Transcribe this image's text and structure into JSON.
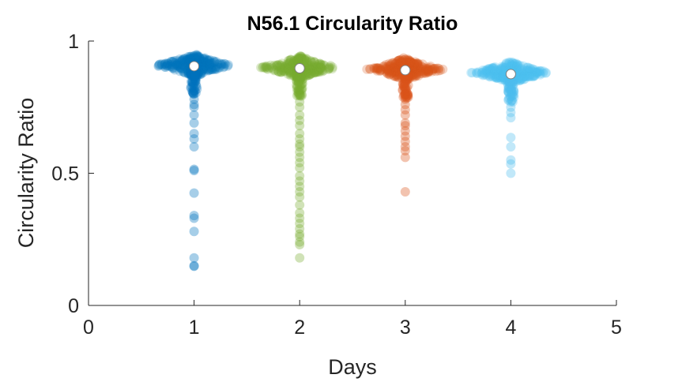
{
  "chart_data": {
    "type": "scatter",
    "title": "N56.1 Circularity Ratio",
    "xlabel": "Days",
    "ylabel": "Circularity Ratio",
    "xlim": [
      0,
      5
    ],
    "ylim": [
      0,
      1
    ],
    "xticks": [
      "0",
      "1",
      "2",
      "3",
      "4",
      "5"
    ],
    "yticks": [
      "0",
      "0.5",
      "1"
    ],
    "grid": false,
    "legend": "none",
    "series": [
      {
        "x": 1,
        "color": "#0072BD",
        "median": 0.905,
        "dense_center": 0.908,
        "outliers": [
          0.88,
          0.86,
          0.84,
          0.82,
          0.8,
          0.78,
          0.76,
          0.75,
          0.72,
          0.69,
          0.65,
          0.63,
          0.6,
          0.515,
          0.51,
          0.425,
          0.34,
          0.33,
          0.28,
          0.18,
          0.15,
          0.148
        ]
      },
      {
        "x": 2,
        "color": "#77AC30",
        "median": 0.897,
        "dense_center": 0.9,
        "outliers": [
          0.87,
          0.85,
          0.83,
          0.8,
          0.77,
          0.75,
          0.72,
          0.7,
          0.68,
          0.65,
          0.63,
          0.61,
          0.6,
          0.58,
          0.56,
          0.54,
          0.52,
          0.49,
          0.47,
          0.45,
          0.43,
          0.41,
          0.38,
          0.35,
          0.33,
          0.31,
          0.29,
          0.27,
          0.26,
          0.24,
          0.23,
          0.18
        ]
      },
      {
        "x": 3,
        "color": "#D95319",
        "median": 0.89,
        "dense_center": 0.893,
        "outliers": [
          0.86,
          0.84,
          0.82,
          0.8,
          0.78,
          0.76,
          0.74,
          0.72,
          0.69,
          0.68,
          0.66,
          0.64,
          0.62,
          0.6,
          0.585,
          0.56,
          0.43
        ]
      },
      {
        "x": 4,
        "color": "#4DBEEE",
        "median": 0.875,
        "dense_center": 0.88,
        "outliers": [
          0.85,
          0.83,
          0.81,
          0.79,
          0.77,
          0.75,
          0.73,
          0.71,
          0.635,
          0.6,
          0.55,
          0.535,
          0.5
        ]
      }
    ]
  }
}
